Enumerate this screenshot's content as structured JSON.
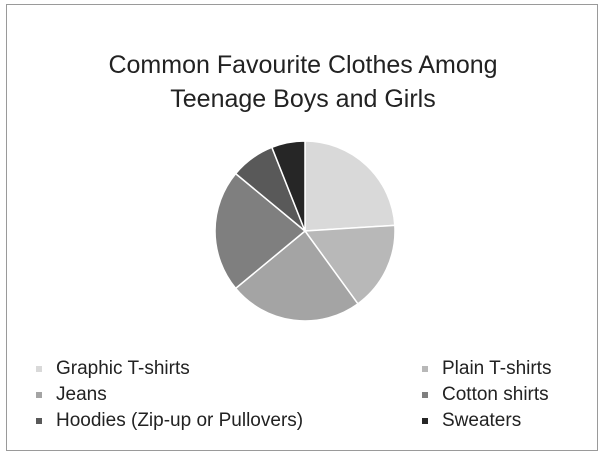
{
  "chart_data": {
    "type": "pie",
    "title_lines": [
      "Common Favourite Clothes Among",
      "Teenage Boys and Girls"
    ],
    "slices": [
      {
        "label": "Graphic T-shirts",
        "value": 24,
        "color": "#d9d9d9"
      },
      {
        "label": "Plain T-shirts",
        "value": 16,
        "color": "#b8b8b8"
      },
      {
        "label": "Jeans",
        "value": 24,
        "color": "#a4a4a4"
      },
      {
        "label": "Cotton shirts",
        "value": 22,
        "color": "#7f7f7f"
      },
      {
        "label": "Hoodies (Zip-up or Pullovers)",
        "value": 8,
        "color": "#595959"
      },
      {
        "label": "Sweaters",
        "value": 6,
        "color": "#262626"
      }
    ],
    "legend_placement": "bottom"
  }
}
